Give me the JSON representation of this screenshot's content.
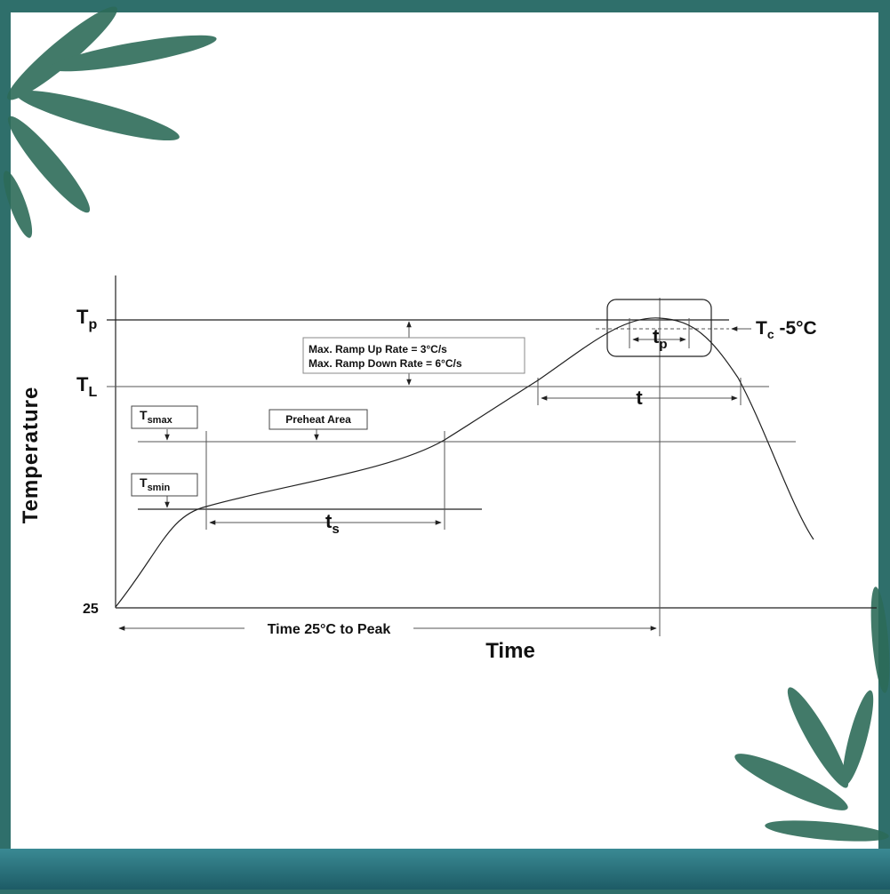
{
  "y_axis_label": "Temperature",
  "x_axis_label": "Time",
  "origin_label": "25",
  "tp_level": {
    "main": "T",
    "sub": "p"
  },
  "tl_level": {
    "main": "T",
    "sub": "L"
  },
  "tsmax": {
    "main": "T",
    "sub": "smax"
  },
  "tsmin": {
    "main": "T",
    "sub": "smin"
  },
  "ts": {
    "main": "t",
    "sub": "s"
  },
  "tp_time": {
    "main": "t",
    "sub": "p"
  },
  "t_time": "t",
  "tc": {
    "main": "T",
    "sub": "c",
    "rest": " -5°C"
  },
  "ramp_up": "Max. Ramp Up Rate = 3°C/s",
  "ramp_down": "Max. Ramp Down Rate = 6°C/s",
  "preheat": "Preheat Area",
  "time_to_peak": "Time 25°C to Peak"
}
